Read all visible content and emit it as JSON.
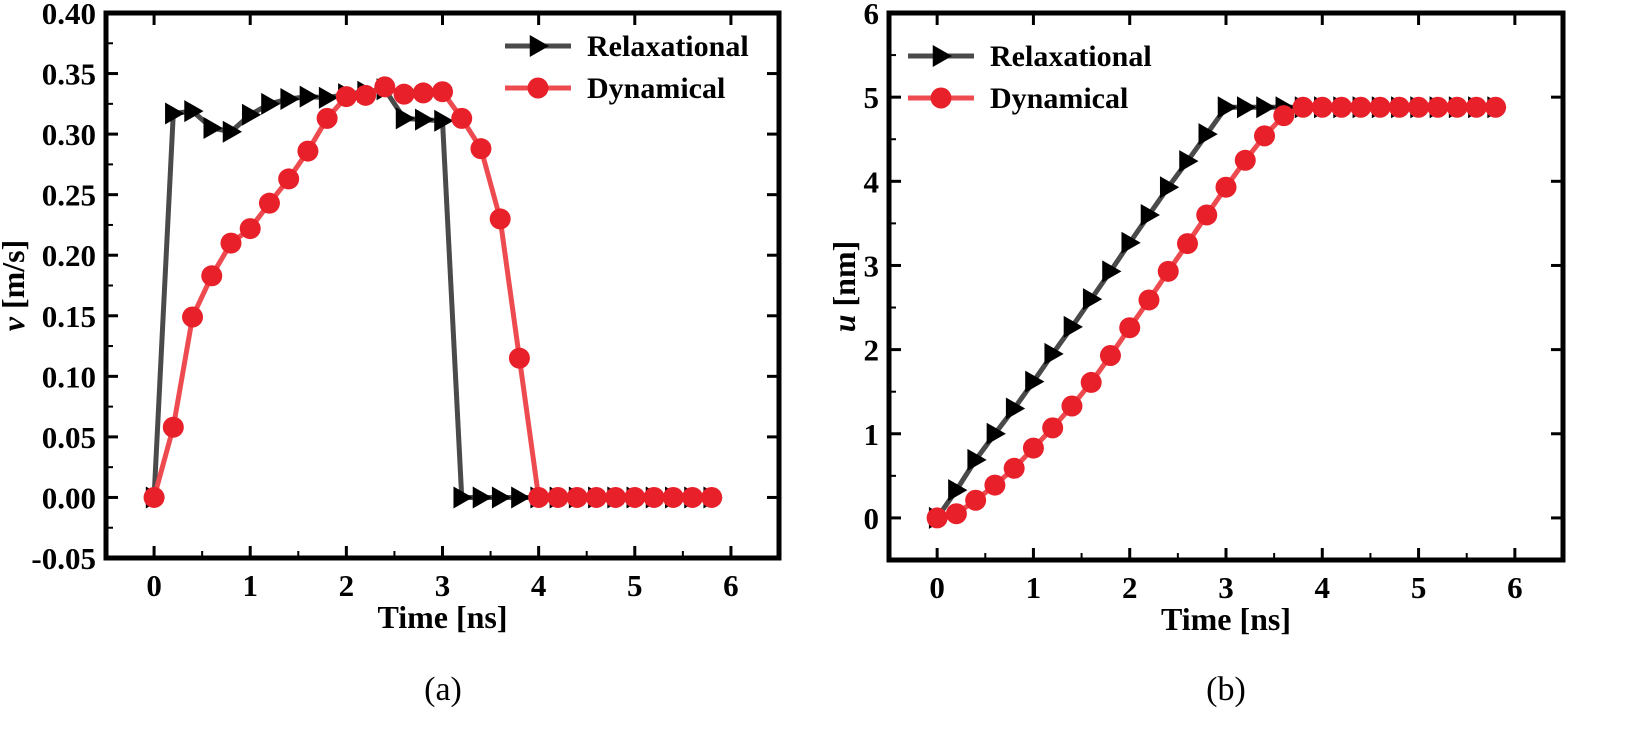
{
  "chart_data": [
    {
      "type": "line",
      "caption": "(a)",
      "xlabel": "Time [ns]",
      "ylabel_var": "v",
      "ylabel_unit": " [m/s]",
      "xlim": [
        -0.5,
        6.5
      ],
      "ylim": [
        -0.05,
        0.4
      ],
      "xticks": [
        0,
        1,
        2,
        3,
        4,
        5,
        6
      ],
      "xtick_labels": [
        "0",
        "1",
        "2",
        "3",
        "4",
        "5",
        "6"
      ],
      "yticks": [
        -0.05,
        0.0,
        0.05,
        0.1,
        0.15,
        0.2,
        0.25,
        0.3,
        0.35,
        0.4
      ],
      "ytick_labels": [
        "-0.05",
        "0.00",
        "0.05",
        "0.10",
        "0.15",
        "0.20",
        "0.25",
        "0.30",
        "0.35",
        "0.40"
      ],
      "legend_position": "top-right",
      "series": [
        {
          "name": "Relaxational",
          "color": "#4a4a4a",
          "marker": "triangle-right",
          "x": [
            0,
            0.2,
            0.4,
            0.6,
            0.8,
            1.0,
            1.2,
            1.4,
            1.6,
            1.8,
            2.0,
            2.2,
            2.4,
            2.6,
            2.8,
            3.0,
            3.2,
            3.4,
            3.6,
            3.8,
            4.0,
            4.2,
            4.4,
            4.6,
            4.8,
            5.0,
            5.2,
            5.4,
            5.6,
            5.8
          ],
          "y": [
            0.0,
            0.317,
            0.319,
            0.305,
            0.302,
            0.316,
            0.325,
            0.329,
            0.331,
            0.33,
            0.333,
            0.335,
            0.337,
            0.313,
            0.312,
            0.311,
            0.0,
            0.0,
            0.0,
            0.0,
            0.0,
            0.0,
            0.0,
            0.0,
            0.0,
            0.0,
            0.0,
            0.0,
            0.0,
            0.0
          ]
        },
        {
          "name": "Dynamical",
          "color": "#e8202a",
          "line_color": "#ee4b50",
          "marker": "circle",
          "x": [
            0,
            0.2,
            0.4,
            0.6,
            0.8,
            1.0,
            1.2,
            1.4,
            1.6,
            1.8,
            2.0,
            2.2,
            2.4,
            2.6,
            2.8,
            3.0,
            3.2,
            3.4,
            3.6,
            3.8,
            4.0,
            4.2,
            4.4,
            4.6,
            4.8,
            5.0,
            5.2,
            5.4,
            5.6,
            5.8
          ],
          "y": [
            0.0,
            0.058,
            0.149,
            0.183,
            0.21,
            0.222,
            0.243,
            0.263,
            0.286,
            0.313,
            0.331,
            0.332,
            0.339,
            0.333,
            0.334,
            0.335,
            0.313,
            0.288,
            0.23,
            0.115,
            0.0,
            0.0,
            0.0,
            0.0,
            0.0,
            0.0,
            0.0,
            0.0,
            0.0,
            0.0
          ]
        }
      ]
    },
    {
      "type": "line",
      "caption": "(b)",
      "xlabel": "Time [ns]",
      "ylabel_var": "u",
      "ylabel_unit": " [nm]",
      "xlim": [
        -0.5,
        6.5
      ],
      "ylim": [
        -0.5,
        6.0
      ],
      "xticks": [
        0,
        1,
        2,
        3,
        4,
        5,
        6
      ],
      "xtick_labels": [
        "0",
        "1",
        "2",
        "3",
        "4",
        "5",
        "6"
      ],
      "yticks": [
        0,
        1,
        2,
        3,
        4,
        5,
        6
      ],
      "ytick_labels": [
        "0",
        "1",
        "2",
        "3",
        "4",
        "5",
        "6"
      ],
      "legend_position": "top-left",
      "series": [
        {
          "name": "Relaxational",
          "color": "#4a4a4a",
          "marker": "triangle-right",
          "x": [
            0,
            0.2,
            0.4,
            0.6,
            0.8,
            1.0,
            1.2,
            1.4,
            1.6,
            1.8,
            2.0,
            2.2,
            2.4,
            2.6,
            2.8,
            3.0,
            3.2,
            3.4,
            3.6,
            3.8,
            4.0,
            4.2,
            4.4,
            4.6,
            4.8,
            5.0,
            5.2,
            5.4,
            5.6,
            5.8
          ],
          "y": [
            0.0,
            0.33,
            0.69,
            1.0,
            1.3,
            1.62,
            1.95,
            2.27,
            2.6,
            2.93,
            3.27,
            3.6,
            3.93,
            4.24,
            4.56,
            4.88,
            4.88,
            4.88,
            4.88,
            4.88,
            4.88,
            4.88,
            4.88,
            4.88,
            4.88,
            4.88,
            4.88,
            4.88,
            4.88,
            4.88
          ]
        },
        {
          "name": "Dynamical",
          "color": "#e8202a",
          "line_color": "#ee4b50",
          "marker": "circle",
          "x": [
            0,
            0.2,
            0.4,
            0.6,
            0.8,
            1.0,
            1.2,
            1.4,
            1.6,
            1.8,
            2.0,
            2.2,
            2.4,
            2.6,
            2.8,
            3.0,
            3.2,
            3.4,
            3.6,
            3.8,
            4.0,
            4.2,
            4.4,
            4.6,
            4.8,
            5.0,
            5.2,
            5.4,
            5.6,
            5.8
          ],
          "y": [
            0.0,
            0.05,
            0.21,
            0.39,
            0.59,
            0.83,
            1.07,
            1.33,
            1.61,
            1.93,
            2.26,
            2.59,
            2.93,
            3.26,
            3.6,
            3.93,
            4.25,
            4.54,
            4.78,
            4.88,
            4.88,
            4.88,
            4.88,
            4.88,
            4.88,
            4.88,
            4.88,
            4.88,
            4.88,
            4.88
          ]
        }
      ]
    }
  ]
}
